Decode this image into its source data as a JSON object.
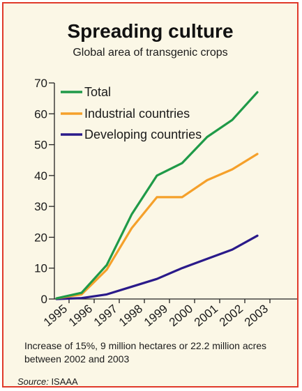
{
  "chart_data": {
    "type": "line",
    "title": "Spreading culture",
    "subtitle": "Global area of transgenic crops",
    "xlabel": "",
    "ylabel": "",
    "x": [
      "1995",
      "1996",
      "1997",
      "1998",
      "1999",
      "2000",
      "2001",
      "2002",
      "2003"
    ],
    "ylim": [
      0,
      70
    ],
    "yticks": [
      "0",
      "10",
      "20",
      "30",
      "40",
      "50",
      "60",
      "70"
    ],
    "grid": false,
    "legend_position": "top-left",
    "series": [
      {
        "name": "Total",
        "color": "#1f9a48",
        "values": [
          0.2,
          2,
          11,
          27.5,
          40,
          44,
          52.5,
          58,
          67
        ]
      },
      {
        "name": "Industrial countries",
        "color": "#f5a02a",
        "values": [
          0.2,
          1.5,
          9.5,
          23,
          33,
          33,
          38.5,
          42,
          47
        ]
      },
      {
        "name": "Developing countries",
        "color": "#2a1a8a",
        "values": [
          0,
          0.3,
          1.5,
          4,
          6.5,
          10,
          13,
          16,
          20.5
        ]
      }
    ]
  },
  "note": "Increase of 15%, 9 million hectares or 22.2 million acres between 2002 and 2003",
  "source": {
    "label": "Source:",
    "value": "ISAAA"
  },
  "colors": {
    "border": "#e03a2a",
    "background": "#fbf7e6"
  }
}
